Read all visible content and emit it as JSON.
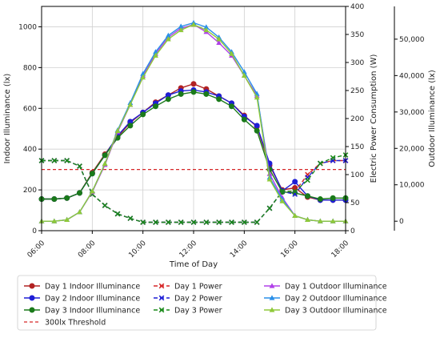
{
  "chart_data": {
    "type": "line",
    "xlabel": "Time of Day",
    "ylabel_left": "Indoor Illuminance (lx)",
    "ylabel_right_power": "Electric Power Consumption (W)",
    "ylabel_right_outdoor": "Outdoor Illuminance (lx)",
    "x_range": [
      6,
      18
    ],
    "x_ticks": [
      6,
      8,
      10,
      12,
      14,
      16,
      18
    ],
    "x_tick_labels": [
      "06:00",
      "08:00",
      "10:00",
      "12:00",
      "14:00",
      "16:00",
      "18:00"
    ],
    "y_left_range": [
      0,
      1100
    ],
    "y_left_ticks": [
      0,
      200,
      400,
      600,
      800,
      1000
    ],
    "y_power_range": [
      0,
      400
    ],
    "y_power_ticks": [
      0,
      50,
      100,
      150,
      200,
      250,
      300,
      350,
      400
    ],
    "y_outdoor_range": [
      -2600,
      59000
    ],
    "y_outdoor_ticks": [
      0,
      10000,
      20000,
      30000,
      40000,
      50000
    ],
    "y_outdoor_tick_labels": [
      "0",
      "10,000",
      "20,000",
      "30,000",
      "40,000",
      "50,000"
    ],
    "grid": true,
    "legend_position": "bottom",
    "threshold": {
      "name": "300lx Threshold",
      "value": 300,
      "axis": "left",
      "color": "#d62728"
    },
    "x": [
      6,
      6.5,
      7,
      7.5,
      8,
      8.5,
      9,
      9.5,
      10,
      10.5,
      11,
      11.5,
      12,
      12.5,
      13,
      13.5,
      14,
      14.5,
      15,
      15.5,
      16,
      16.5,
      17,
      17.5,
      18
    ],
    "series": [
      {
        "name": "Day 1 Indoor Illuminance",
        "axis": "left",
        "color": "#b22222",
        "marker": "circle",
        "style": "solid",
        "values": [
          155,
          155,
          160,
          185,
          285,
          375,
          460,
          530,
          580,
          630,
          665,
          700,
          720,
          695,
          660,
          625,
          565,
          510,
          320,
          200,
          210,
          165,
          150,
          150,
          150
        ]
      },
      {
        "name": "Day 2 Indoor Illuminance",
        "axis": "left",
        "color": "#1f1fd6",
        "marker": "circle",
        "style": "solid",
        "values": [
          155,
          155,
          160,
          185,
          280,
          370,
          465,
          535,
          580,
          625,
          665,
          685,
          690,
          680,
          660,
          625,
          560,
          515,
          330,
          195,
          240,
          170,
          150,
          150,
          150
        ]
      },
      {
        "name": "Day 3 Indoor Illuminance",
        "axis": "left",
        "color": "#1a7a1a",
        "marker": "circle",
        "style": "solid",
        "values": [
          155,
          155,
          160,
          185,
          280,
          370,
          455,
          515,
          570,
          610,
          645,
          670,
          680,
          670,
          645,
          610,
          545,
          490,
          300,
          190,
          185,
          170,
          155,
          160,
          160
        ]
      },
      {
        "name": "Day 1 Power",
        "axis": "power",
        "color": "#d62728",
        "marker": "x",
        "style": "dashed",
        "values": [
          125,
          125,
          125,
          115,
          65,
          45,
          30,
          22,
          15,
          15,
          15,
          15,
          15,
          15,
          15,
          15,
          15,
          15,
          40,
          70,
          70,
          100,
          120,
          125,
          125
        ]
      },
      {
        "name": "Day 2 Power",
        "axis": "power",
        "color": "#1f1fd6",
        "marker": "x",
        "style": "dashed",
        "values": [
          125,
          125,
          125,
          115,
          65,
          45,
          30,
          22,
          15,
          15,
          15,
          15,
          15,
          15,
          15,
          15,
          15,
          15,
          40,
          70,
          65,
          95,
          120,
          125,
          125
        ]
      },
      {
        "name": "Day 3 Power",
        "axis": "power",
        "color": "#1a8a1a",
        "marker": "x",
        "style": "dashed",
        "values": [
          125,
          125,
          125,
          115,
          65,
          45,
          30,
          22,
          15,
          15,
          15,
          15,
          15,
          15,
          15,
          15,
          15,
          15,
          40,
          70,
          70,
          90,
          120,
          130,
          135
        ]
      },
      {
        "name": "Day 1 Outdoor Illuminance",
        "axis": "outdoor",
        "color": "#b040e8",
        "marker": "triangle",
        "style": "solid",
        "values": [
          0,
          0,
          400,
          2500,
          8000,
          15500,
          24500,
          32000,
          40000,
          46000,
          50500,
          53000,
          54000,
          52000,
          49000,
          45500,
          40000,
          34500,
          13000,
          6500,
          1500,
          400,
          0,
          0,
          0
        ]
      },
      {
        "name": "Day 2 Outdoor Illuminance",
        "axis": "outdoor",
        "color": "#2a8fe8",
        "marker": "triangle",
        "style": "solid",
        "values": [
          0,
          0,
          400,
          2500,
          8200,
          15800,
          25000,
          32500,
          40500,
          46500,
          51000,
          53500,
          54500,
          53300,
          50500,
          46500,
          41000,
          35000,
          12000,
          6000,
          1500,
          400,
          0,
          0,
          0
        ]
      },
      {
        "name": "Day 3 Outdoor Illuminance",
        "axis": "outdoor",
        "color": "#8fc93a",
        "marker": "triangle",
        "style": "solid",
        "values": [
          0,
          0,
          400,
          2500,
          8200,
          15800,
          24800,
          32000,
          39500,
          45500,
          50000,
          52500,
          54000,
          52500,
          50000,
          46000,
          40000,
          34000,
          11500,
          5500,
          1500,
          400,
          0,
          0,
          0
        ]
      }
    ],
    "legend_order": [
      "Day 1 Indoor Illuminance",
      "Day 1 Power",
      "Day 1 Outdoor Illuminance",
      "Day 2 Indoor Illuminance",
      "Day 2 Power",
      "Day 2 Outdoor Illuminance",
      "Day 3 Indoor Illuminance",
      "Day 3 Power",
      "Day 3 Outdoor Illuminance",
      "300lx Threshold"
    ]
  }
}
